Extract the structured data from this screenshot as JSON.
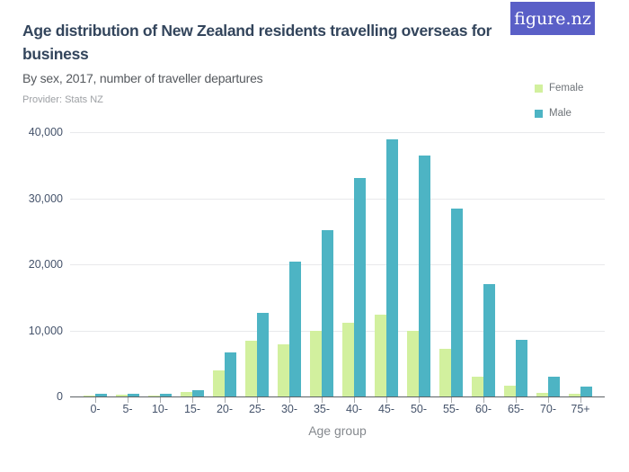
{
  "header": {
    "title": "Age distribution of New Zealand residents travelling overseas for business",
    "subtitle": "By sex, 2017, number of traveller departures",
    "provider": "Provider: Stats NZ",
    "logo_text": "figure.nz",
    "logo_bg_color": "#5a5fc7"
  },
  "chart_data": {
    "type": "bar",
    "title": "Age distribution of New Zealand residents travelling overseas for business",
    "subtitle": "By sex, 2017, number of traveller departures",
    "xlabel": "Age group",
    "ylabel": "",
    "grid": true,
    "legend_position": "top-right",
    "ylim": [
      0,
      40000
    ],
    "yticks": {
      "values": [
        0,
        10000,
        20000,
        30000,
        40000
      ],
      "labels": [
        "0",
        "10,000",
        "20,000",
        "30,000",
        "40,000"
      ]
    },
    "categories": [
      "0-",
      "5-",
      "10-",
      "15-",
      "20-",
      "25-",
      "30-",
      "35-",
      "40-",
      "45-",
      "50-",
      "55-",
      "60-",
      "65-",
      "70-",
      "75+"
    ],
    "series": [
      {
        "name": "Female",
        "color": "#d2f09e",
        "values": [
          150,
          250,
          200,
          650,
          3950,
          8400,
          7900,
          9950,
          11150,
          12350,
          9900,
          7250,
          3050,
          1600,
          500,
          400
        ]
      },
      {
        "name": "Male",
        "color": "#4db4c4",
        "values": [
          400,
          400,
          400,
          950,
          6600,
          12600,
          20450,
          25200,
          33100,
          38900,
          36500,
          28500,
          16950,
          8600,
          3000,
          1450
        ]
      }
    ]
  }
}
